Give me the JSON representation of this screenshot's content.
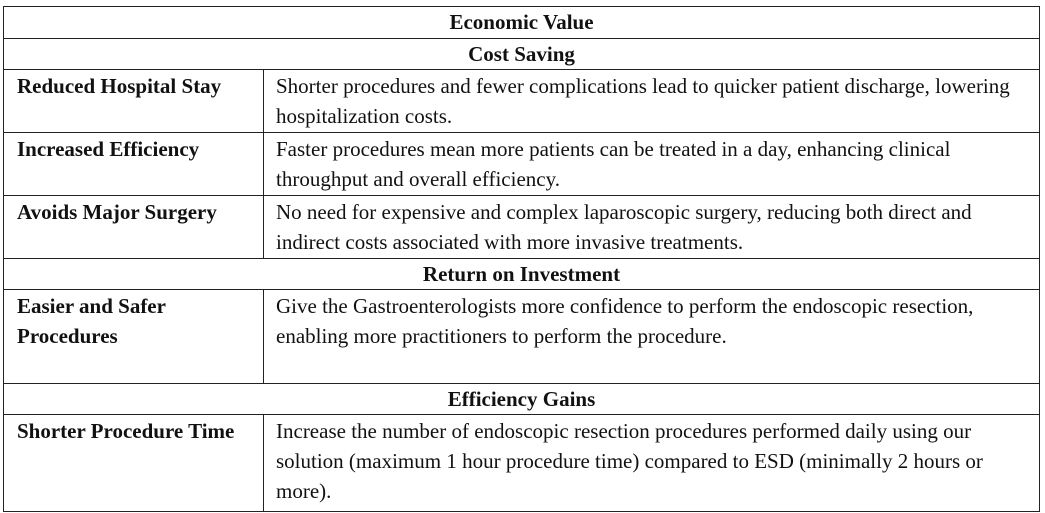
{
  "table": {
    "title": "Economic Value",
    "sections": [
      {
        "heading": "Cost Saving",
        "rows": [
          {
            "label": "Reduced Hospital Stay",
            "text": "Shorter procedures and fewer complications lead to quicker patient discharge, lowering hospitalization costs."
          },
          {
            "label": "Increased Efficiency",
            "text": "Faster procedures mean more patients can be treated in a day, enhancing clinical throughput and overall efficiency."
          },
          {
            "label": "Avoids Major Surgery",
            "text": "No need for expensive and complex laparoscopic surgery, reducing both direct and indirect costs associated with more invasive treatments."
          }
        ]
      },
      {
        "heading": "Return on Investment",
        "rows": [
          {
            "label": "Easier and Safer Procedures",
            "text": "Give the Gastroenterologists more confidence to perform the endoscopic resection, enabling more practitioners to perform the procedure."
          }
        ]
      },
      {
        "heading": "Efficiency Gains",
        "rows": [
          {
            "label": "Shorter Procedure Time",
            "text": "Increase the number of endoscopic resection procedures performed daily using our solution (maximum 1 hour procedure time) compared to ESD (minimally 2 hours or more)."
          }
        ]
      }
    ]
  }
}
